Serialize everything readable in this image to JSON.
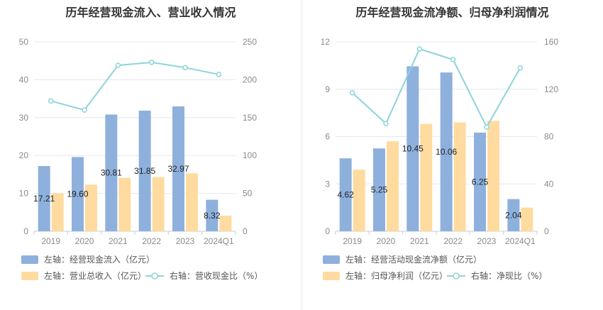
{
  "colors": {
    "bar_primary": "#8eb0dd",
    "bar_secondary": "#ffdba0",
    "line": "#8dd4dc",
    "grid": "#e6e8ee",
    "tick_text": "#8a8a8a",
    "title_text": "#333333"
  },
  "chart_data": [
    {
      "type": "bar",
      "title": "历年经营现金流入、营业收入情况",
      "categories": [
        "2019",
        "2020",
        "2021",
        "2022",
        "2023",
        "2024Q1"
      ],
      "ylim_left": [
        0,
        50
      ],
      "yticks_left": [
        "0",
        "10",
        "20",
        "30",
        "40",
        "50"
      ],
      "ylim_right": [
        0,
        250
      ],
      "yticks_right": [
        "0",
        "50",
        "100",
        "150",
        "200",
        "250"
      ],
      "grid": true,
      "legend_position": "bottom",
      "series": [
        {
          "name": "左轴：经营现金流入（亿元）",
          "type": "bar",
          "axis": "left",
          "values": [
            17.21,
            19.6,
            30.81,
            31.85,
            32.97,
            8.32
          ],
          "labels": [
            "17.21",
            "19.60",
            "30.81",
            "31.85",
            "32.97",
            "8.32"
          ]
        },
        {
          "name": "左轴：营业总收入（亿元）",
          "type": "bar",
          "axis": "left",
          "values": [
            10.0,
            12.3,
            14.1,
            14.3,
            15.3,
            4.1
          ]
        },
        {
          "name": "右轴：营收现金比（%）",
          "type": "line",
          "axis": "right",
          "values": [
            172,
            160,
            219,
            223,
            216,
            207
          ]
        }
      ]
    },
    {
      "type": "bar",
      "title": "历年经营现金流净额、归母净利润情况",
      "categories": [
        "2019",
        "2020",
        "2021",
        "2022",
        "2023",
        "2024Q1"
      ],
      "ylim_left": [
        0,
        12
      ],
      "yticks_left": [
        "0",
        "3",
        "6",
        "9",
        "12"
      ],
      "ylim_right": [
        0,
        160
      ],
      "yticks_right": [
        "0",
        "40",
        "80",
        "120",
        "160"
      ],
      "grid": true,
      "legend_position": "bottom",
      "series": [
        {
          "name": "左轴：经营活动现金流净额（亿元）",
          "type": "bar",
          "axis": "left",
          "values": [
            4.62,
            5.25,
            10.45,
            10.06,
            6.25,
            2.04
          ],
          "labels": [
            "4.62",
            "5.25",
            "10.45",
            "10.06",
            "6.25",
            "2.04"
          ]
        },
        {
          "name": "左轴：归母净利润（亿元）",
          "type": "bar",
          "axis": "left",
          "values": [
            3.9,
            5.7,
            6.8,
            6.9,
            7.0,
            1.5
          ]
        },
        {
          "name": "右轴：净现比（%）",
          "type": "line",
          "axis": "right",
          "values": [
            117,
            91,
            154,
            145,
            88,
            138
          ]
        }
      ]
    }
  ]
}
